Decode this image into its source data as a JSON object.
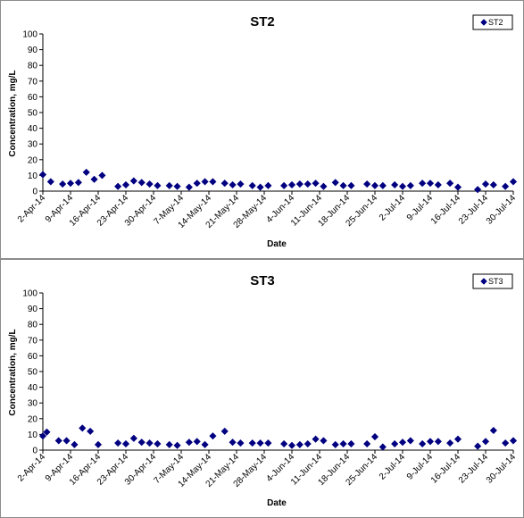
{
  "chart_data": [
    {
      "type": "scatter",
      "title": "ST2",
      "xlabel": "Date",
      "ylabel": "Concentration, mg/L",
      "ylim": [
        0,
        100
      ],
      "yticks": [
        "0",
        "10",
        "20",
        "30",
        "40",
        "50",
        "60",
        "70",
        "80",
        "90",
        "100"
      ],
      "xlim": [
        "2014-04-02",
        "2014-07-30"
      ],
      "xticks": [
        {
          "date": "2014-04-02",
          "label": "2-Apr-14"
        },
        {
          "date": "2014-04-09",
          "label": "9-Apr-14"
        },
        {
          "date": "2014-04-16",
          "label": "16-Apr-14"
        },
        {
          "date": "2014-04-23",
          "label": "23-Apr-14"
        },
        {
          "date": "2014-04-30",
          "label": "30-Apr-14"
        },
        {
          "date": "2014-05-07",
          "label": "7-May-14"
        },
        {
          "date": "2014-05-14",
          "label": "14-May-14"
        },
        {
          "date": "2014-05-21",
          "label": "21-May-14"
        },
        {
          "date": "2014-05-28",
          "label": "28-May-14"
        },
        {
          "date": "2014-06-04",
          "label": "4-Jun-14"
        },
        {
          "date": "2014-06-11",
          "label": "11-Jun-14"
        },
        {
          "date": "2014-06-18",
          "label": "18-Jun-14"
        },
        {
          "date": "2014-06-25",
          "label": "25-Jun-14"
        },
        {
          "date": "2014-07-02",
          "label": "2-Jul-14"
        },
        {
          "date": "2014-07-09",
          "label": "9-Jul-14"
        },
        {
          "date": "2014-07-16",
          "label": "16-Jul-14"
        },
        {
          "date": "2014-07-23",
          "label": "23-Jul-14"
        },
        {
          "date": "2014-07-30",
          "label": "30-Jul-14"
        }
      ],
      "grid": false,
      "legend_position": "top-right",
      "series": [
        {
          "name": "ST2",
          "color": "#000080",
          "marker": "diamond",
          "points": [
            {
              "x": "2014-04-02",
              "y": 10.5
            },
            {
              "x": "2014-04-04",
              "y": 6
            },
            {
              "x": "2014-04-07",
              "y": 4.5
            },
            {
              "x": "2014-04-09",
              "y": 5
            },
            {
              "x": "2014-04-11",
              "y": 5.5
            },
            {
              "x": "2014-04-13",
              "y": 12
            },
            {
              "x": "2014-04-15",
              "y": 7.5
            },
            {
              "x": "2014-04-17",
              "y": 10
            },
            {
              "x": "2014-04-21",
              "y": 3
            },
            {
              "x": "2014-04-23",
              "y": 4
            },
            {
              "x": "2014-04-25",
              "y": 6.5
            },
            {
              "x": "2014-04-27",
              "y": 5.5
            },
            {
              "x": "2014-04-29",
              "y": 4.5
            },
            {
              "x": "2014-05-01",
              "y": 3.5
            },
            {
              "x": "2014-05-04",
              "y": 3.5
            },
            {
              "x": "2014-05-06",
              "y": 3
            },
            {
              "x": "2014-05-09",
              "y": 2.5
            },
            {
              "x": "2014-05-11",
              "y": 5
            },
            {
              "x": "2014-05-13",
              "y": 6
            },
            {
              "x": "2014-05-15",
              "y": 6
            },
            {
              "x": "2014-05-18",
              "y": 5
            },
            {
              "x": "2014-05-20",
              "y": 4
            },
            {
              "x": "2014-05-22",
              "y": 4.5
            },
            {
              "x": "2014-05-25",
              "y": 3.5
            },
            {
              "x": "2014-05-27",
              "y": 2.5
            },
            {
              "x": "2014-05-29",
              "y": 3.5
            },
            {
              "x": "2014-06-02",
              "y": 3.5
            },
            {
              "x": "2014-06-04",
              "y": 4
            },
            {
              "x": "2014-06-06",
              "y": 4.5
            },
            {
              "x": "2014-06-08",
              "y": 4.5
            },
            {
              "x": "2014-06-10",
              "y": 5
            },
            {
              "x": "2014-06-12",
              "y": 3
            },
            {
              "x": "2014-06-15",
              "y": 5.5
            },
            {
              "x": "2014-06-17",
              "y": 3.5
            },
            {
              "x": "2014-06-19",
              "y": 3.5
            },
            {
              "x": "2014-06-23",
              "y": 4.5
            },
            {
              "x": "2014-06-25",
              "y": 3.5
            },
            {
              "x": "2014-06-27",
              "y": 3.5
            },
            {
              "x": "2014-06-30",
              "y": 4
            },
            {
              "x": "2014-07-02",
              "y": 3
            },
            {
              "x": "2014-07-04",
              "y": 3.5
            },
            {
              "x": "2014-07-07",
              "y": 5
            },
            {
              "x": "2014-07-09",
              "y": 5
            },
            {
              "x": "2014-07-11",
              "y": 4
            },
            {
              "x": "2014-07-14",
              "y": 5
            },
            {
              "x": "2014-07-16",
              "y": 2.5
            },
            {
              "x": "2014-07-21",
              "y": 1
            },
            {
              "x": "2014-07-23",
              "y": 4.5
            },
            {
              "x": "2014-07-25",
              "y": 4
            },
            {
              "x": "2014-07-28",
              "y": 3
            },
            {
              "x": "2014-07-30",
              "y": 6
            }
          ]
        }
      ]
    },
    {
      "type": "scatter",
      "title": "ST3",
      "xlabel": "Date",
      "ylabel": "Concentration, mg/L",
      "ylim": [
        0,
        100
      ],
      "yticks": [
        "0",
        "10",
        "20",
        "30",
        "40",
        "50",
        "60",
        "70",
        "80",
        "90",
        "100"
      ],
      "xlim": [
        "2014-04-02",
        "2014-07-30"
      ],
      "xticks": [
        {
          "date": "2014-04-02",
          "label": "2-Apr-14"
        },
        {
          "date": "2014-04-09",
          "label": "9-Apr-14"
        },
        {
          "date": "2014-04-16",
          "label": "16-Apr-14"
        },
        {
          "date": "2014-04-23",
          "label": "23-Apr-14"
        },
        {
          "date": "2014-04-30",
          "label": "30-Apr-14"
        },
        {
          "date": "2014-05-07",
          "label": "7-May-14"
        },
        {
          "date": "2014-05-14",
          "label": "14-May-14"
        },
        {
          "date": "2014-05-21",
          "label": "21-May-14"
        },
        {
          "date": "2014-05-28",
          "label": "28-May-14"
        },
        {
          "date": "2014-06-04",
          "label": "4-Jun-14"
        },
        {
          "date": "2014-06-11",
          "label": "11-Jun-14"
        },
        {
          "date": "2014-06-18",
          "label": "18-Jun-14"
        },
        {
          "date": "2014-06-25",
          "label": "25-Jun-14"
        },
        {
          "date": "2014-07-02",
          "label": "2-Jul-14"
        },
        {
          "date": "2014-07-09",
          "label": "9-Jul-14"
        },
        {
          "date": "2014-07-16",
          "label": "16-Jul-14"
        },
        {
          "date": "2014-07-23",
          "label": "23-Jul-14"
        },
        {
          "date": "2014-07-30",
          "label": "30-Jul-14"
        }
      ],
      "grid": false,
      "legend_position": "top-right",
      "series": [
        {
          "name": "ST3",
          "color": "#000080",
          "marker": "diamond",
          "points": [
            {
              "x": "2014-04-02",
              "y": 9
            },
            {
              "x": "2014-04-03",
              "y": 11.5
            },
            {
              "x": "2014-04-06",
              "y": 6
            },
            {
              "x": "2014-04-08",
              "y": 6
            },
            {
              "x": "2014-04-10",
              "y": 3.5
            },
            {
              "x": "2014-04-12",
              "y": 14
            },
            {
              "x": "2014-04-14",
              "y": 12
            },
            {
              "x": "2014-04-16",
              "y": 3.5
            },
            {
              "x": "2014-04-21",
              "y": 4.5
            },
            {
              "x": "2014-04-23",
              "y": 4
            },
            {
              "x": "2014-04-25",
              "y": 7.5
            },
            {
              "x": "2014-04-27",
              "y": 5
            },
            {
              "x": "2014-04-29",
              "y": 4.5
            },
            {
              "x": "2014-05-01",
              "y": 4
            },
            {
              "x": "2014-05-04",
              "y": 3.5
            },
            {
              "x": "2014-05-06",
              "y": 3
            },
            {
              "x": "2014-05-09",
              "y": 5
            },
            {
              "x": "2014-05-11",
              "y": 5.5
            },
            {
              "x": "2014-05-13",
              "y": 3.5
            },
            {
              "x": "2014-05-15",
              "y": 9
            },
            {
              "x": "2014-05-18",
              "y": 12
            },
            {
              "x": "2014-05-20",
              "y": 5
            },
            {
              "x": "2014-05-22",
              "y": 4.5
            },
            {
              "x": "2014-05-25",
              "y": 4.5
            },
            {
              "x": "2014-05-27",
              "y": 4.5
            },
            {
              "x": "2014-05-29",
              "y": 4.5
            },
            {
              "x": "2014-06-02",
              "y": 4
            },
            {
              "x": "2014-06-04",
              "y": 3
            },
            {
              "x": "2014-06-06",
              "y": 3.5
            },
            {
              "x": "2014-06-08",
              "y": 4
            },
            {
              "x": "2014-06-10",
              "y": 7
            },
            {
              "x": "2014-06-12",
              "y": 6
            },
            {
              "x": "2014-06-15",
              "y": 3.5
            },
            {
              "x": "2014-06-17",
              "y": 4
            },
            {
              "x": "2014-06-19",
              "y": 4
            },
            {
              "x": "2014-06-23",
              "y": 4
            },
            {
              "x": "2014-06-25",
              "y": 8.5
            },
            {
              "x": "2014-06-27",
              "y": 2
            },
            {
              "x": "2014-06-30",
              "y": 4
            },
            {
              "x": "2014-07-02",
              "y": 5
            },
            {
              "x": "2014-07-04",
              "y": 6
            },
            {
              "x": "2014-07-07",
              "y": 4
            },
            {
              "x": "2014-07-09",
              "y": 5.5
            },
            {
              "x": "2014-07-11",
              "y": 5.5
            },
            {
              "x": "2014-07-14",
              "y": 4.5
            },
            {
              "x": "2014-07-16",
              "y": 7
            },
            {
              "x": "2014-07-21",
              "y": 2.5
            },
            {
              "x": "2014-07-23",
              "y": 5.5
            },
            {
              "x": "2014-07-25",
              "y": 12.5
            },
            {
              "x": "2014-07-28",
              "y": 4.5
            },
            {
              "x": "2014-07-30",
              "y": 6
            }
          ]
        }
      ]
    }
  ]
}
